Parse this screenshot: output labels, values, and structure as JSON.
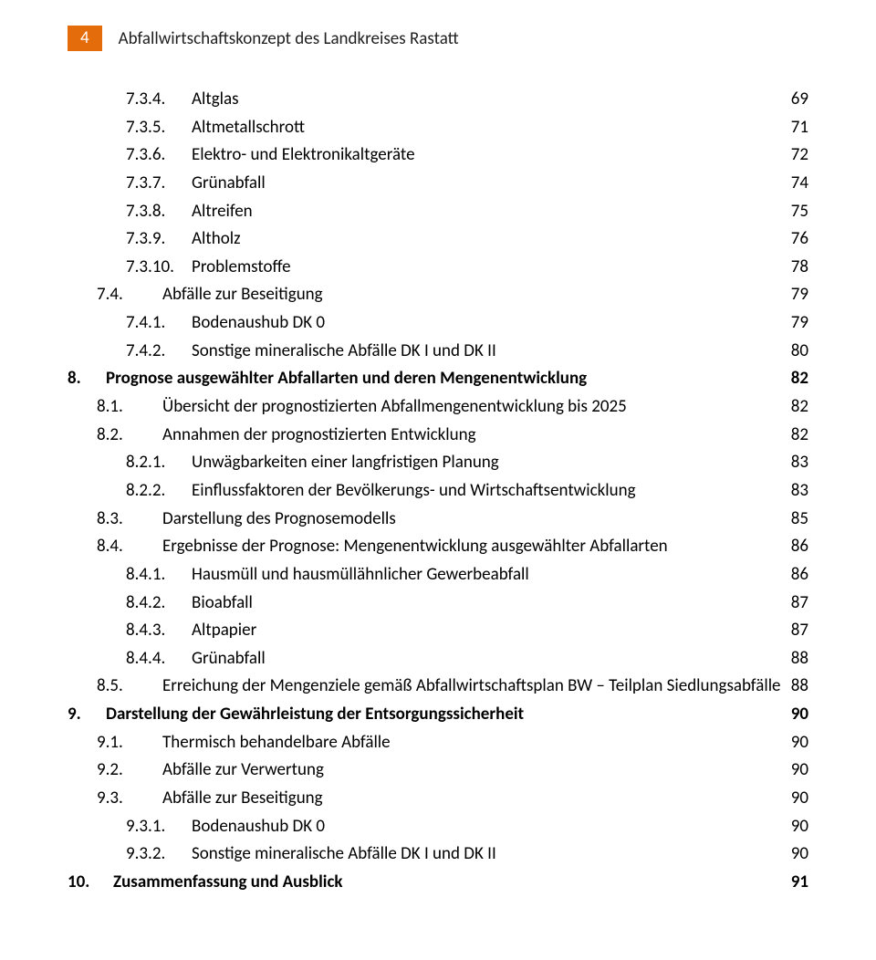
{
  "header": {
    "page_number": "4",
    "title": "Abfallwirtschaftskonzept des Landkreises Rastatt"
  },
  "entries": [
    {
      "indent": 2,
      "numClass": "numcol-a",
      "bold": false,
      "num": "7.3.4.",
      "title": "Altglas",
      "page": "69"
    },
    {
      "indent": 2,
      "numClass": "numcol-a",
      "bold": false,
      "num": "7.3.5.",
      "title": "Altmetallschrott",
      "page": "71"
    },
    {
      "indent": 2,
      "numClass": "numcol-a",
      "bold": false,
      "num": "7.3.6.",
      "title": "Elektro- und Elektronikaltgeräte",
      "page": "72"
    },
    {
      "indent": 2,
      "numClass": "numcol-a",
      "bold": false,
      "num": "7.3.7.",
      "title": "Grünabfall",
      "page": "74"
    },
    {
      "indent": 2,
      "numClass": "numcol-a",
      "bold": false,
      "num": "7.3.8.",
      "title": "Altreifen",
      "page": "75"
    },
    {
      "indent": 2,
      "numClass": "numcol-a",
      "bold": false,
      "num": "7.3.9.",
      "title": "Altholz",
      "page": "76"
    },
    {
      "indent": 2,
      "numClass": "numcol-a",
      "bold": false,
      "num": "7.3.10.",
      "title": "Problemstoffe",
      "page": "78"
    },
    {
      "indent": 1,
      "numClass": "numcol-b",
      "bold": false,
      "num": "7.4.",
      "title": "Abfälle zur Beseitigung",
      "page": "79"
    },
    {
      "indent": 2,
      "numClass": "numcol-a",
      "bold": false,
      "num": "7.4.1.",
      "title": "Bodenaushub DK 0",
      "page": "79"
    },
    {
      "indent": 2,
      "numClass": "numcol-a",
      "bold": false,
      "num": "7.4.2.",
      "title": "Sonstige mineralische Abfälle DK I und DK II",
      "page": "80"
    },
    {
      "indent": 0,
      "numClass": "numcol-d",
      "bold": true,
      "num": "8.",
      "title": "Prognose ausgewählter Abfallarten und deren Mengenentwicklung",
      "page": "82"
    },
    {
      "indent": 1,
      "numClass": "numcol-b",
      "bold": false,
      "num": "8.1.",
      "title": "Übersicht der prognostizierten Abfallmengenentwicklung bis 2025",
      "page": "82"
    },
    {
      "indent": 1,
      "numClass": "numcol-b",
      "bold": false,
      "num": "8.2.",
      "title": "Annahmen der prognostizierten Entwicklung",
      "page": "82"
    },
    {
      "indent": 2,
      "numClass": "numcol-a",
      "bold": false,
      "num": "8.2.1.",
      "title": "Unwägbarkeiten einer langfristigen Planung",
      "page": "83"
    },
    {
      "indent": 2,
      "numClass": "numcol-a",
      "bold": false,
      "num": "8.2.2.",
      "title": "Einflussfaktoren der Bevölkerungs- und Wirtschaftsentwicklung",
      "page": "83"
    },
    {
      "indent": 1,
      "numClass": "numcol-b",
      "bold": false,
      "num": "8.3.",
      "title": "Darstellung des Prognosemodells",
      "page": "85"
    },
    {
      "indent": 1,
      "numClass": "numcol-b",
      "bold": false,
      "num": "8.4.",
      "title": "Ergebnisse der Prognose: Mengenentwicklung ausgewählter Abfallarten",
      "page": "86"
    },
    {
      "indent": 2,
      "numClass": "numcol-a",
      "bold": false,
      "num": "8.4.1.",
      "title": "Hausmüll und hausmüllähnlicher Gewerbeabfall",
      "page": "86"
    },
    {
      "indent": 2,
      "numClass": "numcol-a",
      "bold": false,
      "num": "8.4.2.",
      "title": "Bioabfall",
      "page": "87"
    },
    {
      "indent": 2,
      "numClass": "numcol-a",
      "bold": false,
      "num": "8.4.3.",
      "title": "Altpapier",
      "page": "87"
    },
    {
      "indent": 2,
      "numClass": "numcol-a",
      "bold": false,
      "num": "8.4.4.",
      "title": "Grünabfall",
      "page": "88"
    },
    {
      "indent": 1,
      "numClass": "numcol-b",
      "bold": false,
      "num": "8.5.",
      "title": "Erreichung der Mengenziele gemäß Abfallwirtschaftsplan BW – Teilplan Siedlungsabfälle",
      "page": "88",
      "noLeader": true
    },
    {
      "indent": 0,
      "numClass": "numcol-d",
      "bold": true,
      "num": "9.",
      "title": "Darstellung der Gewährleistung der Entsorgungssicherheit",
      "page": "90"
    },
    {
      "indent": 1,
      "numClass": "numcol-b",
      "bold": false,
      "num": "9.1.",
      "title": "Thermisch behandelbare Abfälle",
      "page": "90"
    },
    {
      "indent": 1,
      "numClass": "numcol-b",
      "bold": false,
      "num": "9.2.",
      "title": "Abfälle zur Verwertung",
      "page": "90"
    },
    {
      "indent": 1,
      "numClass": "numcol-b",
      "bold": false,
      "num": "9.3.",
      "title": "Abfälle zur Beseitigung",
      "page": "90"
    },
    {
      "indent": 2,
      "numClass": "numcol-a",
      "bold": false,
      "num": "9.3.1.",
      "title": "Bodenaushub DK 0",
      "page": "90"
    },
    {
      "indent": 2,
      "numClass": "numcol-a",
      "bold": false,
      "num": "9.3.2.",
      "title": "Sonstige mineralische Abfälle DK I und DK II",
      "page": "90"
    },
    {
      "indent": 0,
      "numClass": "numcol-e",
      "bold": true,
      "num": "10.",
      "title": "Zusammenfassung und Ausblick",
      "page": "91"
    }
  ]
}
